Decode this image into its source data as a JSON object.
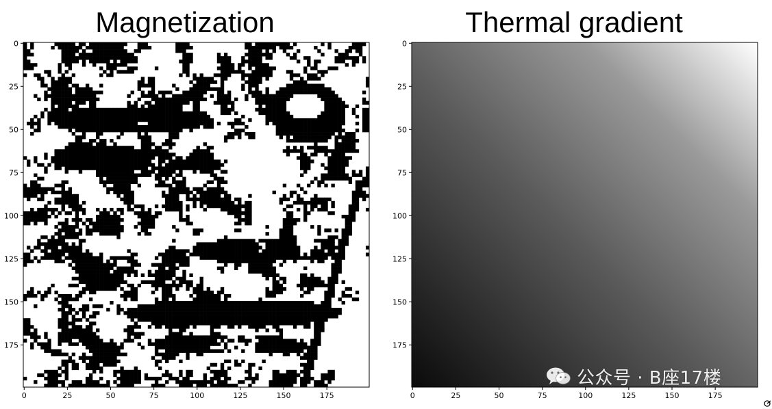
{
  "chart_data": [
    {
      "type": "heatmap",
      "title": "Magnetization",
      "colormap": "gray",
      "binary_values": [
        0,
        1
      ],
      "grid_size": [
        200,
        200
      ],
      "xlim": [
        0,
        199
      ],
      "ylim": [
        199,
        0
      ],
      "x_ticks": [
        0,
        25,
        50,
        75,
        100,
        125,
        150,
        175
      ],
      "y_ticks": [
        0,
        25,
        50,
        75,
        100,
        125,
        150,
        175
      ],
      "content": "binary spin field (black / white pixels) forming a face"
    },
    {
      "type": "heatmap",
      "title": "Thermal gradient",
      "colormap": "gray",
      "grid_size": [
        200,
        200
      ],
      "xlim": [
        0,
        199
      ],
      "ylim": [
        199,
        0
      ],
      "x_ticks": [
        0,
        25,
        50,
        75,
        100,
        125,
        150,
        175
      ],
      "y_ticks": [
        0,
        25,
        50,
        75,
        100,
        125,
        150,
        175
      ],
      "gradient": {
        "min_corner": "bottom-left",
        "max_corner": "top-right",
        "min_color": "#0a0a0a",
        "max_color": "#ffffff"
      }
    }
  ],
  "watermark": {
    "text": "公众号 · B座17楼",
    "icon": "wechat-icon"
  }
}
